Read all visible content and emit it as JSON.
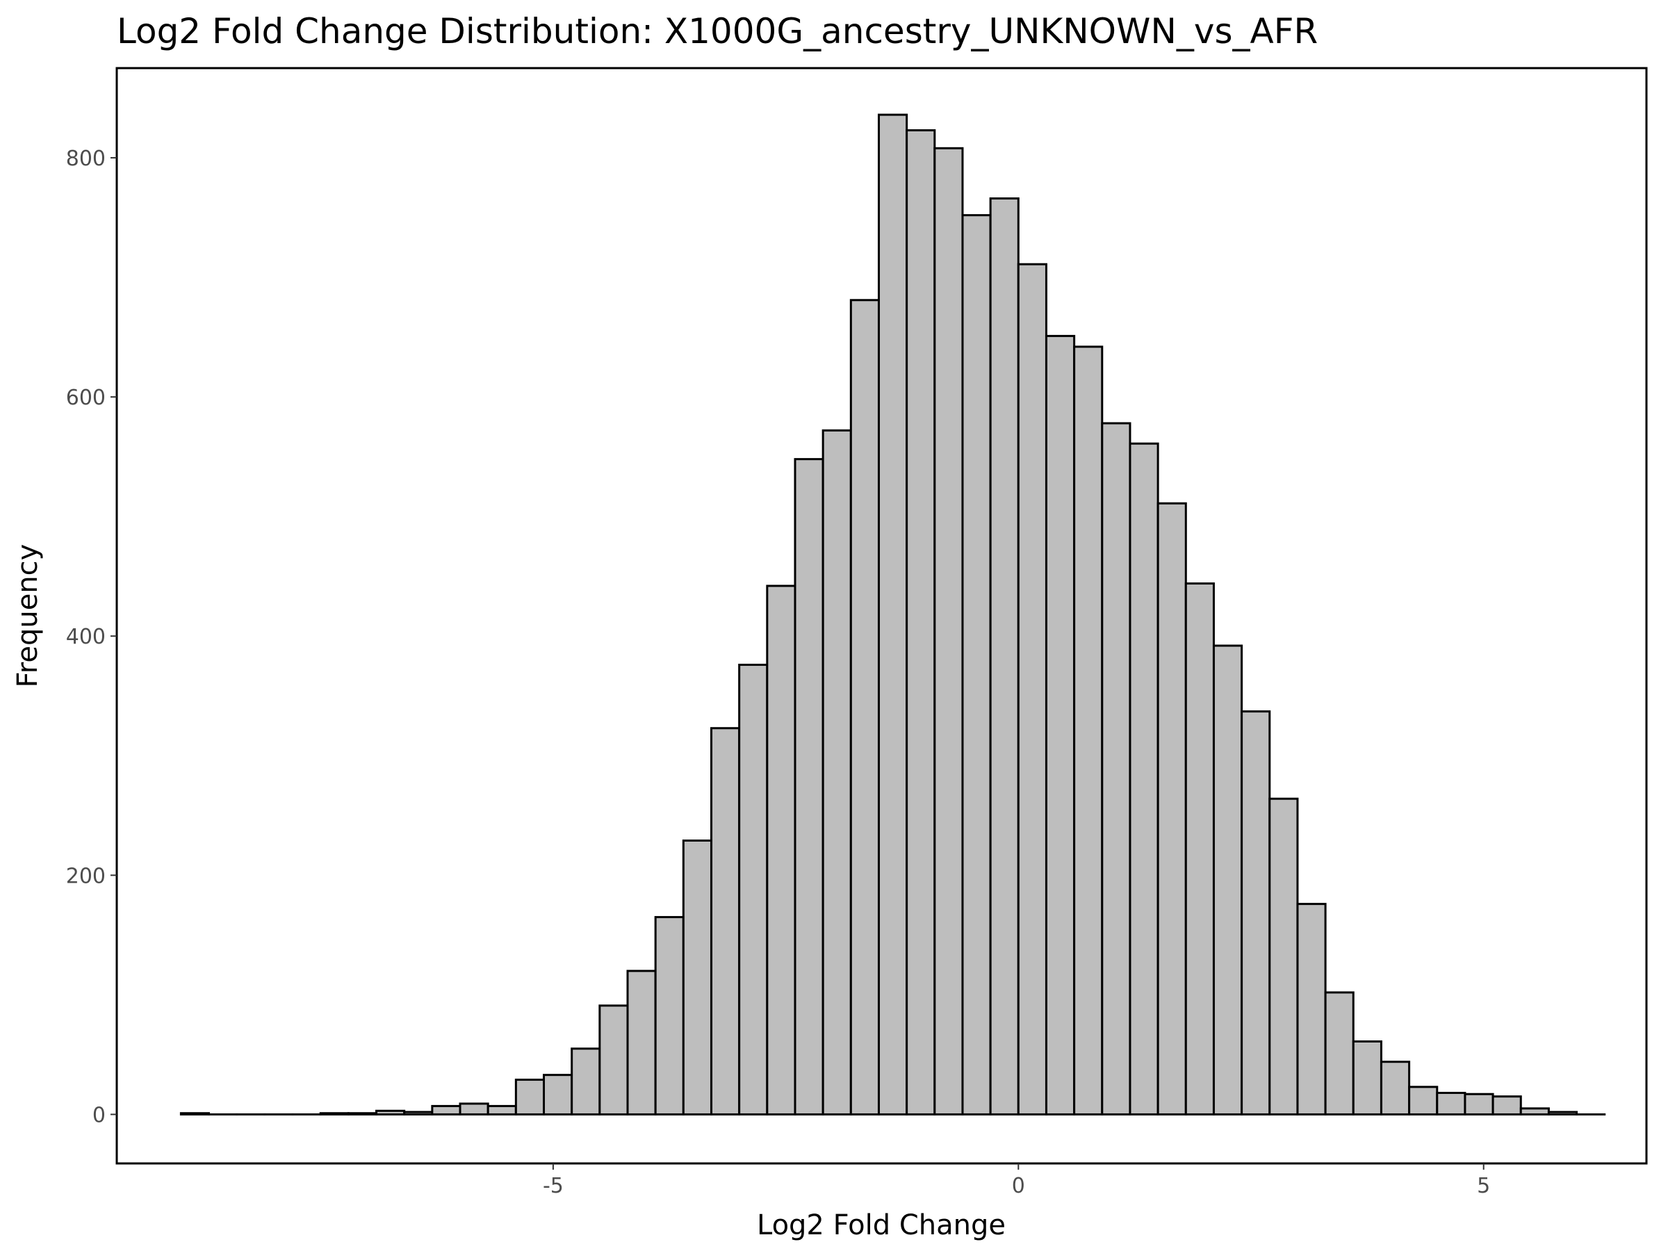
{
  "chart_data": {
    "type": "bar",
    "title": "Log2 Fold Change Distribution: X1000G_ancestry_UNKNOWN_vs_AFR",
    "xlabel": "Log2 Fold Change",
    "ylabel": "Frequency",
    "xlim": [
      -9.69,
      6.75
    ],
    "ylim": [
      -41,
      875
    ],
    "x_ticks": [
      -5,
      0,
      5
    ],
    "x_tick_labels": [
      "-5",
      "0",
      "5"
    ],
    "y_ticks": [
      0,
      200,
      400,
      600,
      800
    ],
    "y_tick_labels": [
      "0",
      "200",
      "400",
      "600",
      "800"
    ],
    "grid": false,
    "legend": "none",
    "bin_width": 0.3,
    "bin_centers": [
      -8.85,
      -8.55,
      -8.25,
      -7.95,
      -7.65,
      -7.35,
      -7.05,
      -6.75,
      -6.45,
      -6.15,
      -5.85,
      -5.55,
      -5.25,
      -4.95,
      -4.65,
      -4.35,
      -4.05,
      -3.75,
      -3.45,
      -3.15,
      -2.85,
      -2.55,
      -2.25,
      -1.95,
      -1.65,
      -1.35,
      -1.05,
      -0.75,
      -0.45,
      -0.15,
      0.15,
      0.45,
      0.75,
      1.05,
      1.35,
      1.65,
      1.95,
      2.25,
      2.55,
      2.85,
      3.15,
      3.45,
      3.75,
      4.05,
      4.35,
      4.65,
      4.95,
      5.25,
      5.55,
      5.85,
      6.15
    ],
    "values": [
      1,
      0,
      0,
      0,
      0,
      1,
      1,
      3,
      2,
      7,
      9,
      7,
      29,
      33,
      55,
      91,
      120,
      165,
      229,
      323,
      376,
      442,
      548,
      572,
      681,
      836,
      823,
      808,
      752,
      766,
      711,
      651,
      642,
      578,
      561,
      511,
      444,
      392,
      337,
      264,
      176,
      102,
      61,
      44,
      23,
      18,
      17,
      15,
      5,
      2,
      0
    ],
    "bar_fill": "#bebebe",
    "bar_stroke": "#000000"
  }
}
